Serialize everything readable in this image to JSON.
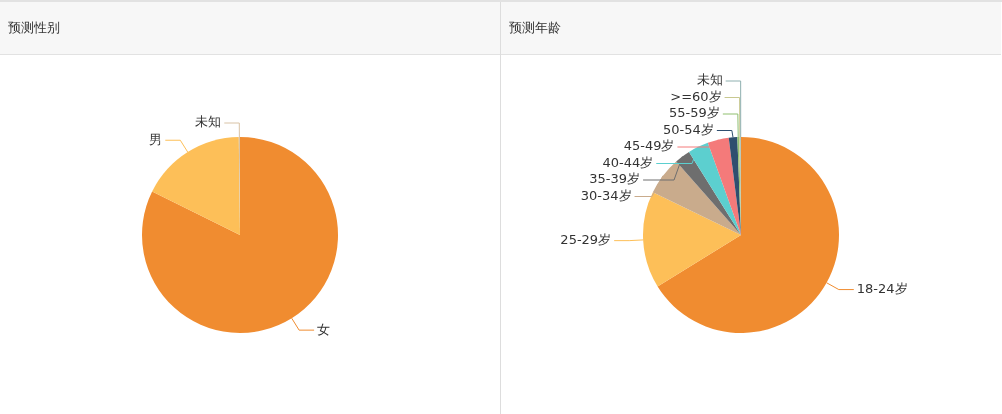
{
  "chart_data": [
    {
      "type": "pie",
      "title": "预测性别",
      "categories": [
        "女",
        "男",
        "未知"
      ],
      "values": [
        82.3,
        17.5,
        0.2
      ],
      "colors": [
        "#f08c30",
        "#fdbf58",
        "#d9c3a6"
      ]
    },
    {
      "type": "pie",
      "title": "预测年龄",
      "categories": [
        "18-24岁",
        "25-29岁",
        "30-34岁",
        "35-39岁",
        "40-44岁",
        "45-49岁",
        "50-54岁",
        "55-59岁",
        ">=60岁",
        "未知"
      ],
      "values": [
        66.2,
        16,
        6.3,
        2.6,
        3.4,
        3.5,
        1.4,
        0.3,
        0.2,
        0.1
      ],
      "colors": [
        "#f08c30",
        "#fdbf58",
        "#c9ab8c",
        "#6e6e6e",
        "#5ccfcf",
        "#f47a7a",
        "#2f4f6f",
        "#8fbf6f",
        "#c8c890",
        "#8fb0b0"
      ]
    }
  ]
}
